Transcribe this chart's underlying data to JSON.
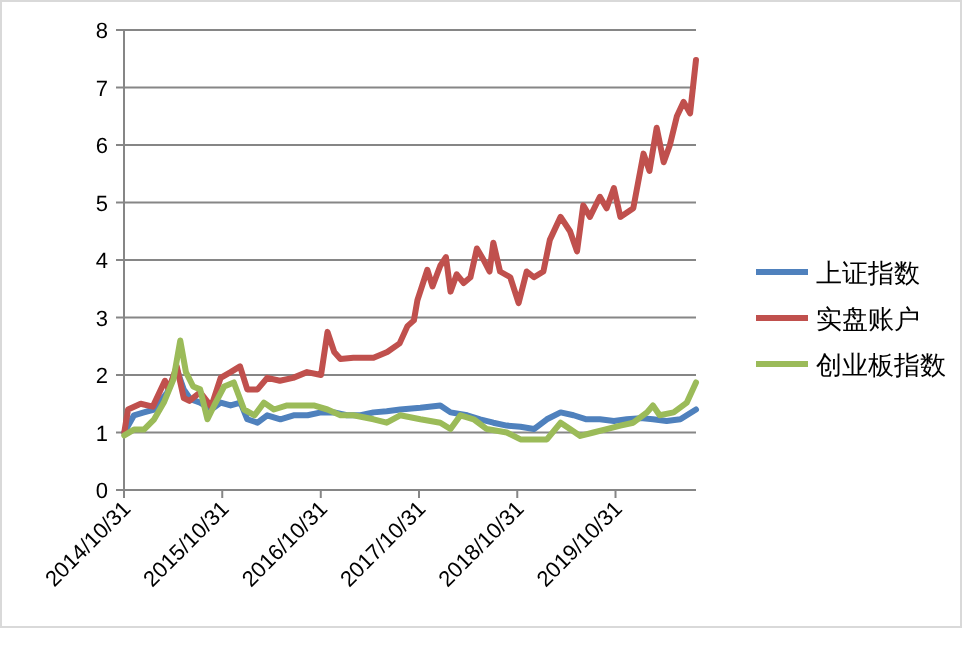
{
  "chart_data": {
    "type": "line",
    "xlim": [
      "2014-10-31",
      "2020-08-25"
    ],
    "xticks": [
      {
        "value": "2014-10-31",
        "label": "2014/10/31"
      },
      {
        "value": "2015-10-31",
        "label": "2015/10/31"
      },
      {
        "value": "2016-10-31",
        "label": "2016/10/31"
      },
      {
        "value": "2017-10-31",
        "label": "2017/10/31"
      },
      {
        "value": "2018-10-31",
        "label": "2018/10/31"
      },
      {
        "value": "2019-10-31",
        "label": "2019/10/31"
      }
    ],
    "ylim": [
      0,
      8
    ],
    "yticks": [
      0,
      1,
      2,
      3,
      4,
      5,
      6,
      7,
      8
    ],
    "grid": "y",
    "legend": "right",
    "marker": "none",
    "line_style": "solid",
    "series": [
      {
        "name": "上证指数",
        "color": "#4f81bd",
        "x": [
          "2014-11-01",
          "2014-12-07",
          "2015-01-13",
          "2015-02-20",
          "2015-04-10",
          "2015-05-15",
          "2015-06-10",
          "2015-07-05",
          "2015-08-10",
          "2015-09-20",
          "2015-10-25",
          "2015-12-01",
          "2016-01-07",
          "2016-02-01",
          "2016-03-10",
          "2016-04-15",
          "2016-06-03",
          "2016-07-22",
          "2016-09-12",
          "2016-11-01",
          "2016-12-20",
          "2017-02-05",
          "2017-03-28",
          "2017-05-15",
          "2017-07-03",
          "2017-08-22",
          "2017-11-05",
          "2018-01-18",
          "2018-02-25",
          "2018-04-28",
          "2018-06-15",
          "2018-08-03",
          "2018-09-22",
          "2018-11-12",
          "2019-01-01",
          "2019-02-18",
          "2019-04-10",
          "2019-05-28",
          "2019-07-15",
          "2019-09-03",
          "2019-10-25",
          "2019-12-12",
          "2020-02-01",
          "2020-03-18",
          "2020-05-08",
          "2020-06-28",
          "2020-08-25"
        ],
        "values": [
          1.0,
          1.3,
          1.35,
          1.4,
          1.7,
          2.1,
          1.75,
          1.58,
          1.52,
          1.4,
          1.52,
          1.47,
          1.52,
          1.23,
          1.17,
          1.3,
          1.23,
          1.3,
          1.3,
          1.35,
          1.35,
          1.3,
          1.3,
          1.35,
          1.37,
          1.4,
          1.43,
          1.47,
          1.35,
          1.3,
          1.23,
          1.17,
          1.12,
          1.1,
          1.06,
          1.23,
          1.35,
          1.3,
          1.23,
          1.23,
          1.2,
          1.23,
          1.25,
          1.23,
          1.2,
          1.23,
          1.4
        ]
      },
      {
        "name": "实盘账户",
        "color": "#c0504d",
        "x": [
          "2014-11-01",
          "2014-11-15",
          "2015-01-01",
          "2015-02-15",
          "2015-04-01",
          "2015-04-15",
          "2015-05-15",
          "2015-06-10",
          "2015-07-01",
          "2015-08-10",
          "2015-09-20",
          "2015-10-25",
          "2015-12-01",
          "2016-01-05",
          "2016-02-01",
          "2016-03-10",
          "2016-04-15",
          "2016-06-01",
          "2016-07-20",
          "2016-09-10",
          "2016-11-01",
          "2016-11-25",
          "2016-12-20",
          "2017-01-12",
          "2017-03-01",
          "2017-05-15",
          "2017-07-05",
          "2017-08-20",
          "2017-09-18",
          "2017-10-12",
          "2017-10-25",
          "2017-12-01",
          "2017-12-20",
          "2018-01-18",
          "2018-02-08",
          "2018-02-25",
          "2018-03-20",
          "2018-04-15",
          "2018-05-10",
          "2018-06-03",
          "2018-06-28",
          "2018-07-20",
          "2018-08-03",
          "2018-08-28",
          "2018-10-05",
          "2018-11-05",
          "2018-12-05",
          "2019-01-01",
          "2019-02-05",
          "2019-03-01",
          "2019-04-10",
          "2019-05-15",
          "2019-06-10",
          "2019-07-03",
          "2019-07-28",
          "2019-09-03",
          "2019-09-28",
          "2019-10-25",
          "2019-11-18",
          "2020-01-05",
          "2020-02-12",
          "2020-03-05",
          "2020-04-01",
          "2020-04-27",
          "2020-05-20",
          "2020-06-15",
          "2020-07-10",
          "2020-08-03",
          "2020-08-25"
        ],
        "values": [
          1.0,
          1.4,
          1.5,
          1.45,
          1.9,
          1.75,
          2.15,
          1.6,
          1.55,
          1.7,
          1.45,
          1.95,
          2.05,
          2.15,
          1.75,
          1.75,
          1.95,
          1.9,
          1.95,
          2.05,
          2.0,
          2.75,
          2.4,
          2.28,
          2.3,
          2.3,
          2.4,
          2.55,
          2.85,
          2.95,
          3.3,
          3.83,
          3.54,
          3.9,
          4.05,
          3.45,
          3.75,
          3.6,
          3.7,
          4.2,
          4.0,
          3.8,
          4.3,
          3.8,
          3.7,
          3.25,
          3.8,
          3.7,
          3.8,
          4.35,
          4.75,
          4.5,
          4.15,
          4.95,
          4.75,
          5.1,
          4.9,
          5.25,
          4.75,
          4.9,
          5.85,
          5.55,
          6.3,
          5.7,
          6.0,
          6.5,
          6.75,
          6.55,
          7.48
        ]
      },
      {
        "name": "创业板指数",
        "color": "#9bbb59",
        "x": [
          "2014-11-01",
          "2014-12-07",
          "2015-01-13",
          "2015-02-20",
          "2015-03-28",
          "2015-05-03",
          "2015-05-28",
          "2015-06-18",
          "2015-07-15",
          "2015-08-10",
          "2015-09-06",
          "2015-10-01",
          "2015-11-07",
          "2015-12-13",
          "2016-01-20",
          "2016-02-28",
          "2016-04-03",
          "2016-05-10",
          "2016-06-28",
          "2016-08-15",
          "2016-10-05",
          "2016-11-25",
          "2017-01-12",
          "2017-03-01",
          "2017-05-15",
          "2017-07-03",
          "2017-08-22",
          "2017-11-05",
          "2018-01-18",
          "2018-02-25",
          "2018-04-03",
          "2018-05-22",
          "2018-07-10",
          "2018-09-22",
          "2018-11-12",
          "2019-01-01",
          "2019-02-18",
          "2019-04-10",
          "2019-05-15",
          "2019-06-22",
          "2019-08-10",
          "2019-09-28",
          "2019-11-18",
          "2020-01-05",
          "2020-02-25",
          "2020-03-18",
          "2020-04-12",
          "2020-06-03",
          "2020-07-22",
          "2020-08-25"
        ],
        "values": [
          0.95,
          1.05,
          1.05,
          1.23,
          1.52,
          1.93,
          2.6,
          2.05,
          1.8,
          1.75,
          1.23,
          1.47,
          1.8,
          1.87,
          1.4,
          1.3,
          1.52,
          1.4,
          1.47,
          1.47,
          1.47,
          1.4,
          1.3,
          1.3,
          1.23,
          1.17,
          1.3,
          1.23,
          1.17,
          1.06,
          1.3,
          1.23,
          1.06,
          1.0,
          0.88,
          0.88,
          0.88,
          1.17,
          1.06,
          0.94,
          1.0,
          1.06,
          1.12,
          1.17,
          1.35,
          1.47,
          1.3,
          1.35,
          1.52,
          1.87
        ]
      }
    ]
  }
}
